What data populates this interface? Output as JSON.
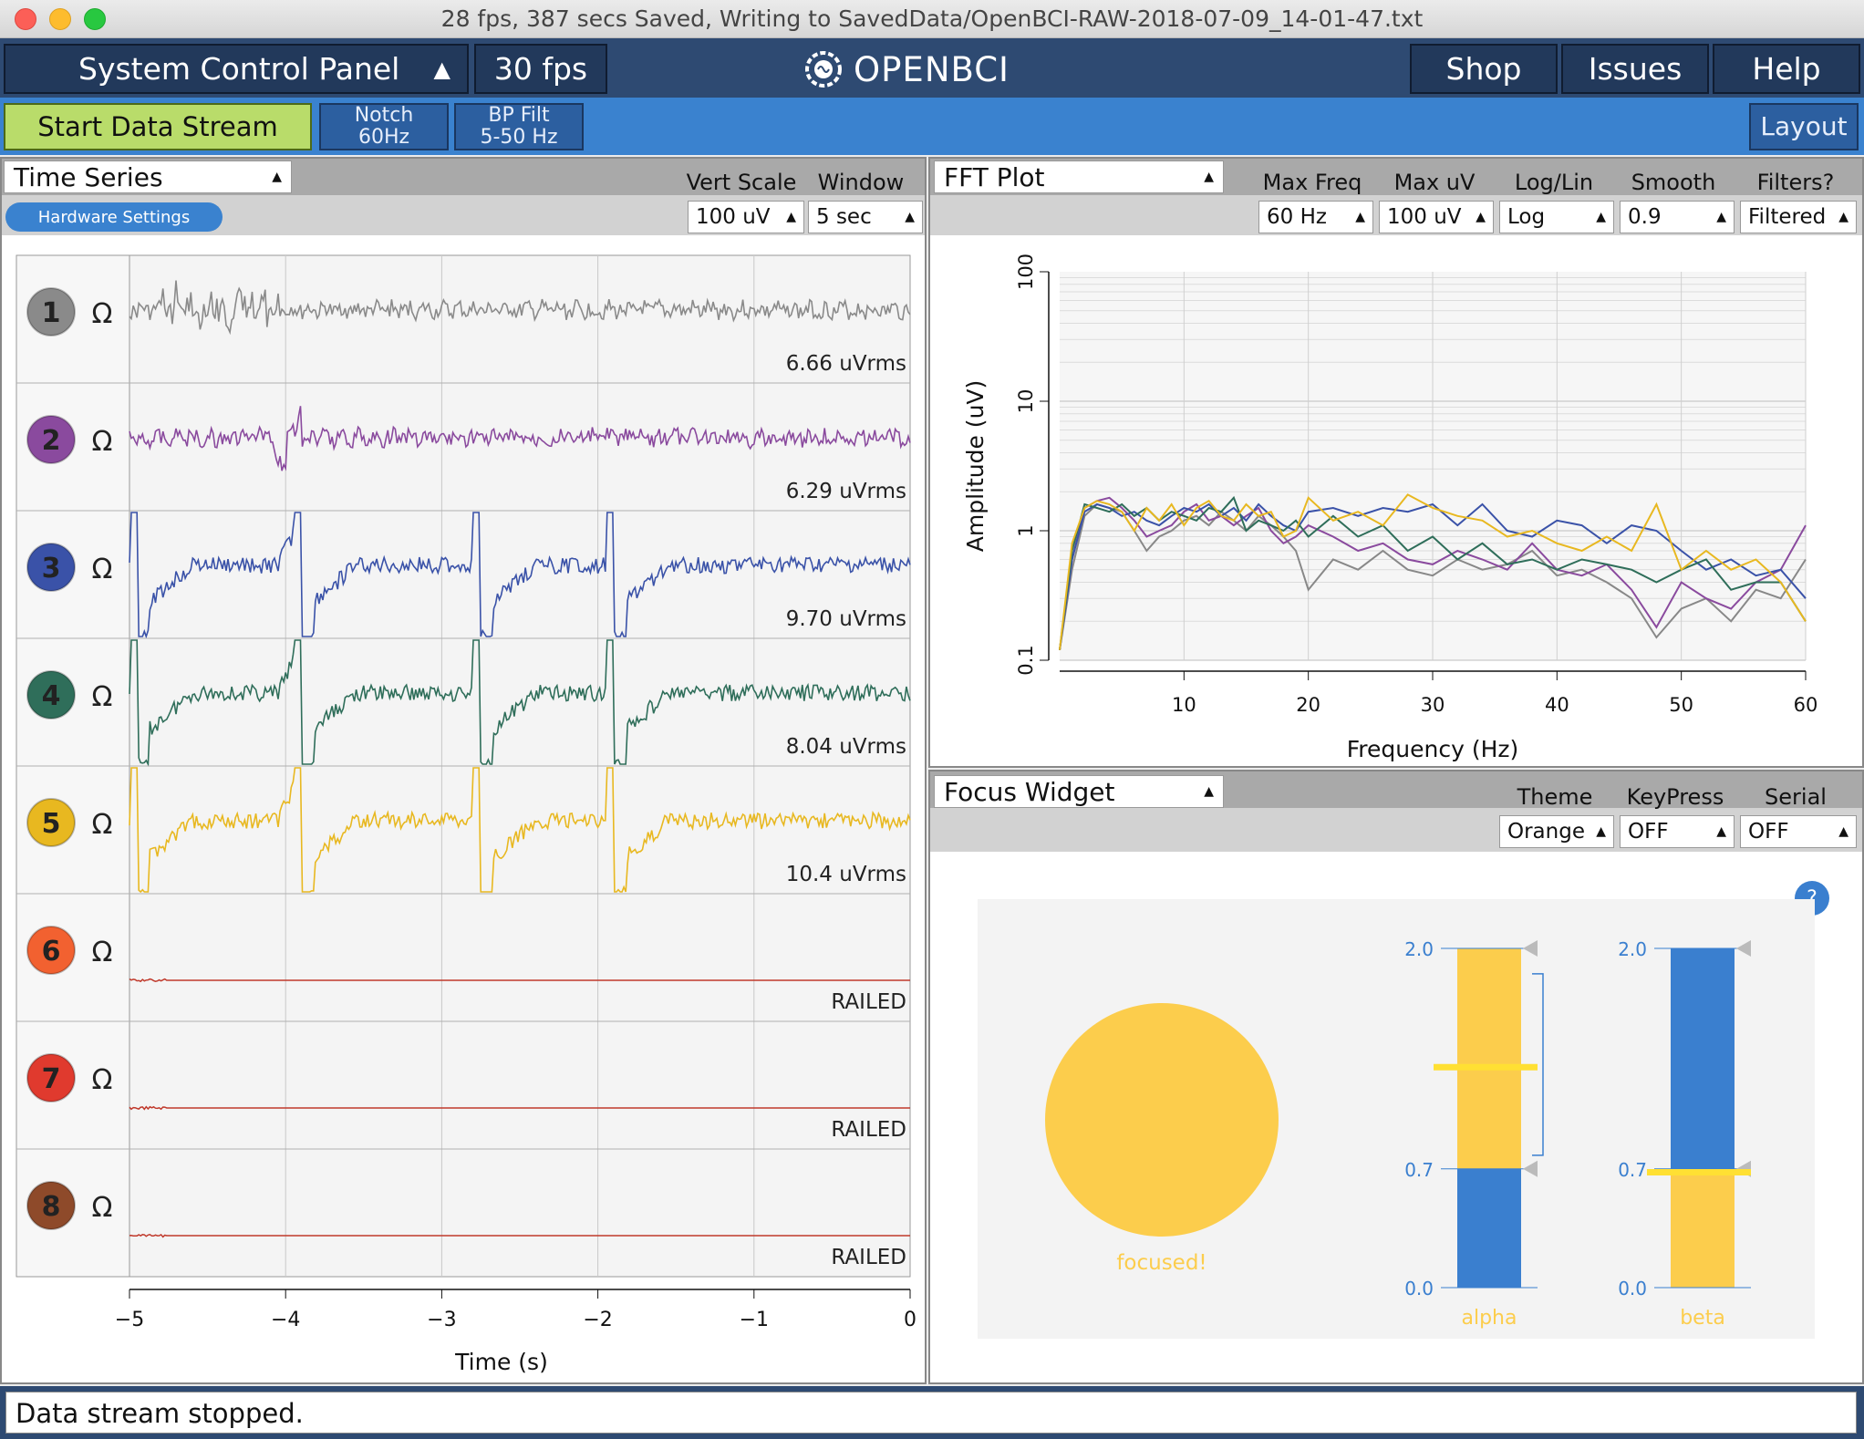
{
  "window": {
    "title": "28 fps, 387 secs Saved, Writing to SavedData/OpenBCI-RAW-2018-07-09_14-01-47.txt"
  },
  "topnav": {
    "system_control_panel": "System Control Panel",
    "fps": "30 fps",
    "logo_text": "OPENBCI",
    "shop": "Shop",
    "issues": "Issues",
    "help": "Help"
  },
  "subnav": {
    "start_stream": "Start Data Stream",
    "notch_line1": "Notch",
    "notch_line2": "60Hz",
    "bp_line1": "BP Filt",
    "bp_line2": "5-50 Hz",
    "layout": "Layout"
  },
  "time_series": {
    "title": "Time Series",
    "hardware_settings": "Hardware Settings",
    "vert_scale_label": "Vert Scale",
    "vert_scale_value": "100 uV",
    "window_label": "Window",
    "window_value": "5 sec",
    "channels": [
      {
        "num": "1",
        "color": "#8a8a8a",
        "rms": "6.66 uVrms",
        "mode": "eeg"
      },
      {
        "num": "2",
        "color": "#8a4a9e",
        "rms": "6.29 uVrms",
        "mode": "eeg"
      },
      {
        "num": "3",
        "color": "#3a52a8",
        "rms": "9.70 uVrms",
        "mode": "blink"
      },
      {
        "num": "4",
        "color": "#2f6e5a",
        "rms": "8.04 uVrms",
        "mode": "blink"
      },
      {
        "num": "5",
        "color": "#e8b820",
        "rms": "10.4 uVrms",
        "mode": "blink"
      },
      {
        "num": "6",
        "color": "#f26130",
        "rms": "RAILED",
        "mode": "railed"
      },
      {
        "num": "7",
        "color": "#e03a2e",
        "rms": "RAILED",
        "mode": "railed"
      },
      {
        "num": "8",
        "color": "#8e4a2a",
        "rms": "RAILED",
        "mode": "railed"
      }
    ],
    "omega": "Ω",
    "x_ticks": [
      "-5",
      "-4",
      "-3",
      "-2",
      "-1",
      "0"
    ],
    "x_label": "Time (s)"
  },
  "fft": {
    "title": "FFT Plot",
    "controls": [
      {
        "label": "Max Freq",
        "value": "60 Hz"
      },
      {
        "label": "Max uV",
        "value": "100 uV"
      },
      {
        "label": "Log/Lin",
        "value": "Log"
      },
      {
        "label": "Smooth",
        "value": "0.9"
      },
      {
        "label": "Filters?",
        "value": "Filtered"
      }
    ],
    "y_label": "Amplitude (uV)",
    "x_label": "Frequency (Hz)",
    "y_ticks": [
      "100",
      "10",
      "1",
      "0.1"
    ],
    "x_ticks": [
      "10",
      "20",
      "30",
      "40",
      "50",
      "60"
    ]
  },
  "chart_data": {
    "type": "line",
    "xlabel": "Frequency (Hz)",
    "ylabel": "Amplitude (uV)",
    "xlim": [
      0,
      60
    ],
    "ylim": [
      0.1,
      100
    ],
    "y_scale": "log",
    "grid": true,
    "x": [
      0,
      1,
      2,
      3,
      4,
      5,
      6,
      7,
      8,
      9,
      10,
      11,
      12,
      13,
      14,
      15,
      16,
      17,
      18,
      19,
      20,
      22,
      24,
      26,
      28,
      30,
      32,
      34,
      36,
      38,
      40,
      42,
      44,
      46,
      48,
      50,
      52,
      54,
      56,
      58,
      60
    ],
    "series": [
      {
        "color": "#888888",
        "values": [
          0.12,
          0.5,
          1.3,
          1.6,
          1.5,
          1.4,
          1.0,
          0.7,
          0.9,
          1.0,
          1.2,
          1.3,
          1.1,
          1.4,
          1.2,
          1.0,
          1.3,
          1.1,
          0.9,
          0.7,
          0.35,
          0.6,
          0.5,
          0.7,
          0.5,
          0.45,
          0.6,
          0.5,
          0.55,
          0.7,
          0.45,
          0.5,
          0.4,
          0.3,
          0.15,
          0.25,
          0.3,
          0.2,
          0.35,
          0.3,
          0.6
        ]
      },
      {
        "color": "#8a4a9e",
        "values": [
          0.12,
          0.6,
          1.5,
          1.7,
          1.8,
          1.5,
          1.2,
          0.9,
          1.0,
          1.1,
          1.4,
          1.6,
          1.2,
          1.3,
          1.1,
          1.3,
          1.5,
          1.0,
          0.8,
          0.9,
          1.1,
          0.9,
          0.7,
          0.8,
          0.6,
          0.55,
          0.7,
          0.6,
          0.5,
          0.8,
          0.5,
          0.45,
          0.55,
          0.35,
          0.18,
          0.4,
          0.3,
          0.25,
          0.4,
          0.5,
          1.1
        ]
      },
      {
        "color": "#3a52a8",
        "values": [
          0.12,
          0.6,
          1.4,
          1.6,
          1.5,
          1.3,
          1.4,
          1.2,
          1.1,
          1.3,
          1.5,
          1.4,
          1.6,
          1.3,
          1.5,
          1.2,
          1.6,
          1.3,
          1.1,
          1.0,
          1.4,
          1.5,
          1.3,
          1.5,
          1.4,
          1.6,
          1.1,
          1.6,
          1.0,
          0.9,
          1.2,
          1.1,
          0.8,
          1.1,
          1.0,
          0.7,
          0.5,
          0.6,
          0.45,
          0.5,
          0.3
        ]
      },
      {
        "color": "#2f6e5a",
        "values": [
          0.12,
          0.7,
          1.6,
          1.5,
          1.4,
          1.6,
          1.3,
          1.5,
          1.2,
          1.4,
          1.3,
          1.2,
          1.5,
          1.4,
          1.8,
          1.0,
          1.2,
          1.1,
          1.0,
          1.2,
          0.9,
          1.3,
          0.9,
          1.1,
          0.7,
          0.9,
          0.6,
          0.8,
          0.55,
          0.6,
          0.5,
          0.6,
          0.55,
          0.5,
          0.4,
          0.5,
          0.6,
          0.35,
          0.4,
          0.4,
          0.2
        ]
      },
      {
        "color": "#e8b820",
        "values": [
          0.12,
          0.8,
          1.5,
          1.7,
          1.6,
          1.4,
          1.0,
          1.5,
          1.2,
          1.6,
          1.1,
          1.5,
          1.7,
          1.3,
          1.2,
          1.6,
          1.3,
          1.4,
          0.9,
          1.0,
          1.8,
          1.2,
          1.4,
          1.1,
          1.9,
          1.5,
          1.3,
          1.2,
          0.9,
          1.0,
          0.8,
          0.7,
          0.9,
          0.7,
          1.6,
          0.5,
          0.7,
          0.5,
          0.6,
          0.4,
          0.2
        ]
      }
    ]
  },
  "focus": {
    "title": "Focus Widget",
    "controls": [
      {
        "label": "Theme",
        "value": "Orange"
      },
      {
        "label": "KeyPress",
        "value": "OFF"
      },
      {
        "label": "Serial",
        "value": "OFF"
      }
    ],
    "help": "?",
    "status": "focused!",
    "bars": [
      {
        "label": "alpha",
        "ticks": [
          "2.0",
          "0.7",
          "0.0"
        ]
      },
      {
        "label": "beta",
        "ticks": [
          "2.0",
          "0.7",
          "0.0"
        ]
      }
    ],
    "colors": {
      "yellow": "#fccd4c",
      "blue": "#3a7fcf"
    }
  },
  "status": {
    "message": "Data stream stopped."
  }
}
